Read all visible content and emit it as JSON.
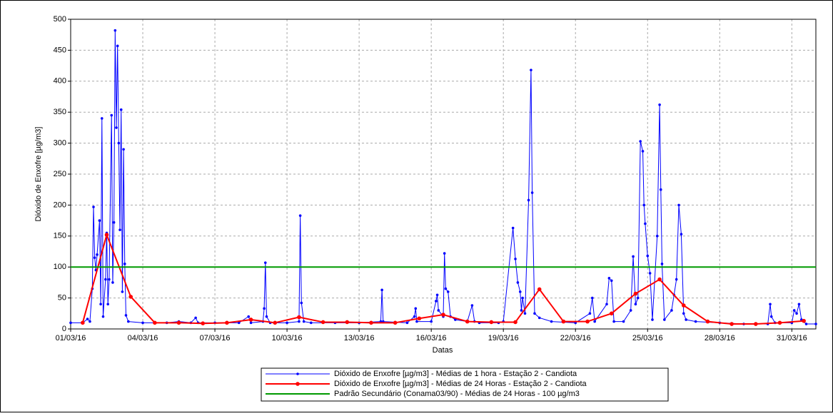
{
  "chart_data": {
    "type": "line",
    "ylabel": "Dióxido de Enxofre [µg/m3]",
    "xlabel": "Datas",
    "xlim": [
      1,
      32
    ],
    "xticks": [
      {
        "value": 1,
        "label": "01/03/16"
      },
      {
        "value": 4,
        "label": "04/03/16"
      },
      {
        "value": 7,
        "label": "07/03/16"
      },
      {
        "value": 10,
        "label": "10/03/16"
      },
      {
        "value": 13,
        "label": "13/03/16"
      },
      {
        "value": 16,
        "label": "16/03/16"
      },
      {
        "value": 19,
        "label": "19/03/16"
      },
      {
        "value": 22,
        "label": "22/03/16"
      },
      {
        "value": 25,
        "label": "25/03/16"
      },
      {
        "value": 28,
        "label": "28/03/16"
      },
      {
        "value": 31,
        "label": "31/03/16"
      }
    ],
    "ylim": [
      0,
      500
    ],
    "yticks": [
      0,
      50,
      100,
      150,
      200,
      250,
      300,
      350,
      400,
      450,
      500
    ],
    "grid": true,
    "legend": "bottom",
    "series": [
      {
        "name": "Dióxido de Enxofre [µg/m3] - Médias de 1 hora - Estação 2 - Candiota",
        "color": "#0000ff",
        "marker": true,
        "x": [
          1.0,
          1.5,
          1.7,
          1.8,
          1.9,
          1.95,
          2.0,
          2.05,
          2.1,
          2.2,
          2.25,
          2.3,
          2.35,
          2.45,
          2.5,
          2.55,
          2.6,
          2.7,
          2.75,
          2.8,
          2.85,
          2.9,
          2.95,
          3.0,
          3.05,
          3.1,
          3.15,
          3.2,
          3.25,
          3.3,
          3.4,
          4.0,
          5.0,
          5.5,
          6.0,
          6.2,
          6.3,
          7.0,
          8.0,
          8.4,
          8.5,
          9.0,
          9.05,
          9.1,
          9.15,
          9.3,
          10.0,
          10.5,
          10.55,
          10.6,
          10.7,
          11.0,
          12.0,
          13.0,
          13.9,
          13.95,
          14.0,
          15.0,
          15.3,
          15.35,
          15.4,
          16.0,
          16.2,
          16.25,
          16.3,
          16.5,
          16.55,
          16.6,
          16.7,
          16.8,
          17.0,
          17.5,
          17.7,
          17.8,
          18.0,
          18.8,
          19.0,
          19.4,
          19.5,
          19.6,
          19.7,
          19.75,
          19.8,
          19.9,
          20.05,
          20.15,
          20.2,
          20.3,
          20.5,
          21.0,
          22.0,
          22.6,
          22.7,
          22.8,
          23.3,
          23.4,
          23.5,
          23.6,
          24.0,
          24.3,
          24.4,
          24.5,
          24.6,
          24.7,
          24.8,
          24.85,
          24.9,
          25.0,
          25.1,
          25.2,
          25.4,
          25.5,
          25.55,
          25.6,
          25.7,
          26.0,
          26.1,
          26.2,
          26.3,
          26.4,
          26.5,
          26.6,
          27.0,
          28.0,
          29.0,
          30.0,
          30.1,
          30.15,
          30.3,
          31.0,
          31.1,
          31.2,
          31.3,
          31.4,
          31.6,
          32.0
        ],
        "values": [
          10,
          10,
          16,
          12,
          65,
          197,
          115,
          95,
          120,
          175,
          40,
          340,
          20,
          80,
          155,
          40,
          80,
          345,
          75,
          172,
          482,
          325,
          457,
          300,
          160,
          354,
          60,
          290,
          105,
          22,
          12,
          10,
          10,
          12,
          10,
          18,
          10,
          10,
          10,
          20,
          10,
          12,
          33,
          107,
          20,
          10,
          10,
          12,
          183,
          42,
          12,
          10,
          10,
          10,
          12,
          63,
          12,
          10,
          20,
          33,
          12,
          12,
          45,
          55,
          30,
          20,
          122,
          65,
          60,
          20,
          15,
          12,
          38,
          12,
          10,
          10,
          12,
          163,
          113,
          75,
          60,
          30,
          50,
          25,
          208,
          418,
          220,
          25,
          18,
          12,
          10,
          25,
          50,
          12,
          40,
          82,
          78,
          12,
          12,
          30,
          117,
          40,
          50,
          303,
          287,
          200,
          170,
          118,
          90,
          15,
          150,
          362,
          225,
          105,
          15,
          30,
          55,
          80,
          200,
          153,
          25,
          15,
          12,
          10,
          8,
          8,
          40,
          20,
          10,
          10,
          30,
          25,
          40,
          15,
          8,
          8
        ]
      },
      {
        "name": "Dióxido de Enxofre [µg/m3] - Médias de 24 Horas - Estação 2 - Candiota",
        "color": "#ff0000",
        "marker": true,
        "x": [
          1.5,
          2.5,
          3.5,
          4.5,
          5.5,
          6.5,
          7.5,
          8.5,
          9.5,
          10.5,
          11.5,
          12.5,
          13.5,
          14.5,
          15.5,
          16.5,
          17.5,
          18.5,
          19.5,
          20.5,
          21.5,
          22.5,
          23.5,
          24.5,
          25.5,
          26.5,
          27.5,
          28.5,
          29.5,
          30.5,
          31.5
        ],
        "values": [
          10,
          152,
          52,
          10,
          10,
          9,
          10,
          15,
          10,
          19,
          11,
          11,
          10,
          10,
          17,
          23,
          12,
          11,
          11,
          64,
          12,
          12,
          25,
          57,
          80,
          38,
          12,
          8,
          8,
          10,
          13
        ]
      },
      {
        "name": "Padrão Secundário (Conama03/90) - Médias de 24 Horas - 100 µg/m3",
        "color": "#009900",
        "marker": false,
        "x": [
          1,
          32
        ],
        "values": [
          100,
          100
        ]
      }
    ]
  }
}
